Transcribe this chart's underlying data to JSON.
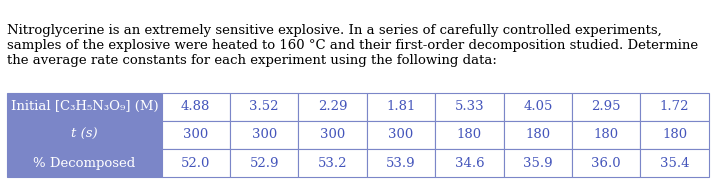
{
  "paragraph": "Nitroglycerine is an extremely sensitive explosive. In a series of carefully controlled experiments, samples of the explosive were heated to 160 °C and their first-order decomposition studied. Determine the average rate constants for each experiment using the following data:",
  "row_labels": [
    "Initial [C₃H₅N₃O₉] (M)",
    "t (s)",
    "% Decomposed"
  ],
  "row_labels_italic": [
    false,
    true,
    false
  ],
  "data_values": [
    [
      "4.88",
      "3.52",
      "2.29",
      "1.81",
      "5.33",
      "4.05",
      "2.95",
      "1.72"
    ],
    [
      "300",
      "300",
      "300",
      "300",
      "180",
      "180",
      "180",
      "180"
    ],
    [
      "52.0",
      "52.9",
      "53.2",
      "53.9",
      "34.6",
      "35.9",
      "36.0",
      "35.4"
    ]
  ],
  "header_bg_color": "#7B86C8",
  "cell_bg_color": "#FFFFFF",
  "header_text_color": "#FFFFFF",
  "cell_text_color": "#4455BB",
  "border_color": "#7B86C8",
  "table_outline_color": "#7B86C8",
  "font_size_paragraph": 9.5,
  "font_size_table": 9.5,
  "fig_width": 7.16,
  "fig_height": 1.79
}
